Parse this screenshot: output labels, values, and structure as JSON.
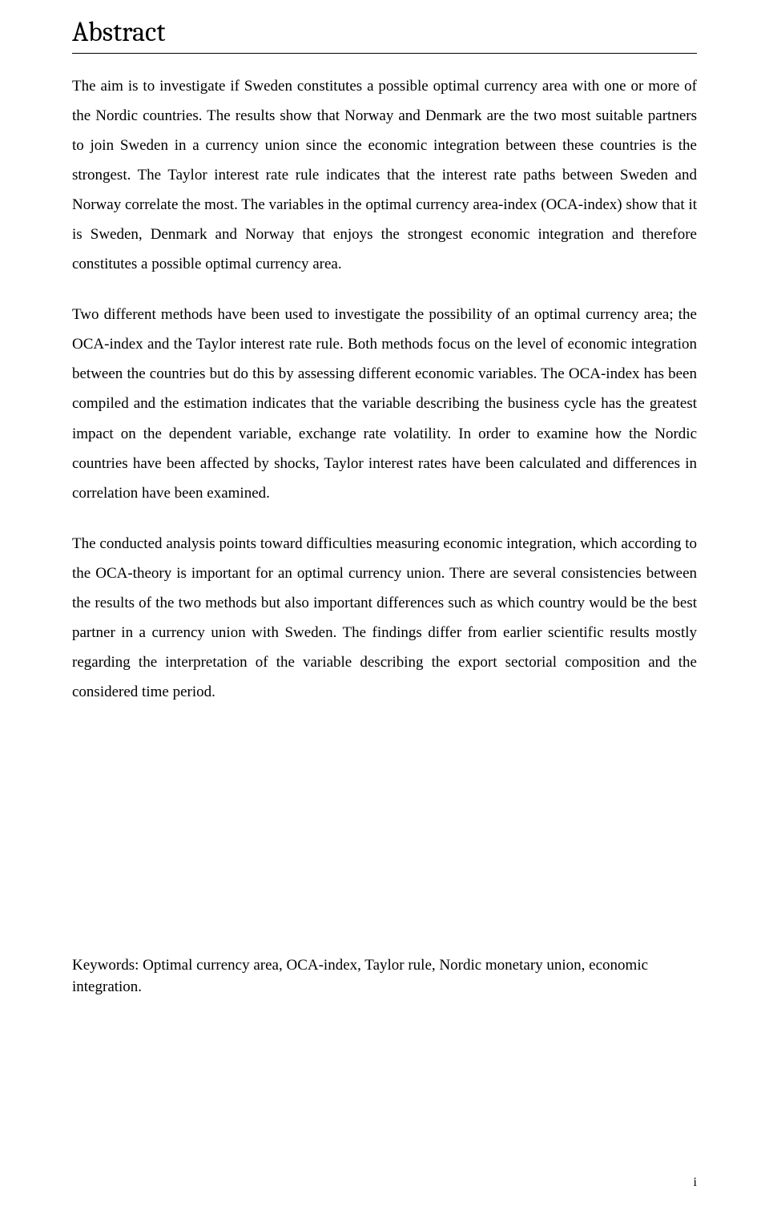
{
  "heading": "Abstract",
  "paragraphs": {
    "p1": "The aim is to investigate if Sweden constitutes a possible optimal currency area with one or more of the Nordic countries. The results show that Norway and Denmark are the two most suitable partners to join Sweden in a currency union since the economic integration between these countries is the strongest. The Taylor interest rate rule indicates that the interest rate paths between Sweden and Norway correlate the most. The variables in the optimal currency area-index (OCA-index) show that it is Sweden, Denmark and Norway that enjoys the strongest economic integration and therefore constitutes a possible optimal currency area.",
    "p2": "Two different methods have been used to investigate the possibility of an optimal currency area; the OCA-index and the Taylor interest rate rule. Both methods focus on the level of economic integration between the countries but do this by assessing different economic variables. The OCA-index has been compiled and the estimation indicates that the variable describing the business cycle has the greatest impact on the dependent variable, exchange rate volatility. In order to examine how the Nordic countries have been affected by shocks, Taylor interest rates have been calculated and differences in correlation have been examined.",
    "p3": "The conducted analysis points toward difficulties measuring economic integration, which according to the OCA-theory is important for an optimal currency union. There are several consistencies between the results of the two methods but also important differences such as which country would be the best partner in a currency union with Sweden. The findings differ from earlier scientific results mostly regarding the interpretation of the variable describing the export sectorial composition and the considered time period."
  },
  "keywords": "Keywords: Optimal currency area, OCA-index, Taylor rule, Nordic monetary union, economic integration.",
  "page_number": "i"
}
